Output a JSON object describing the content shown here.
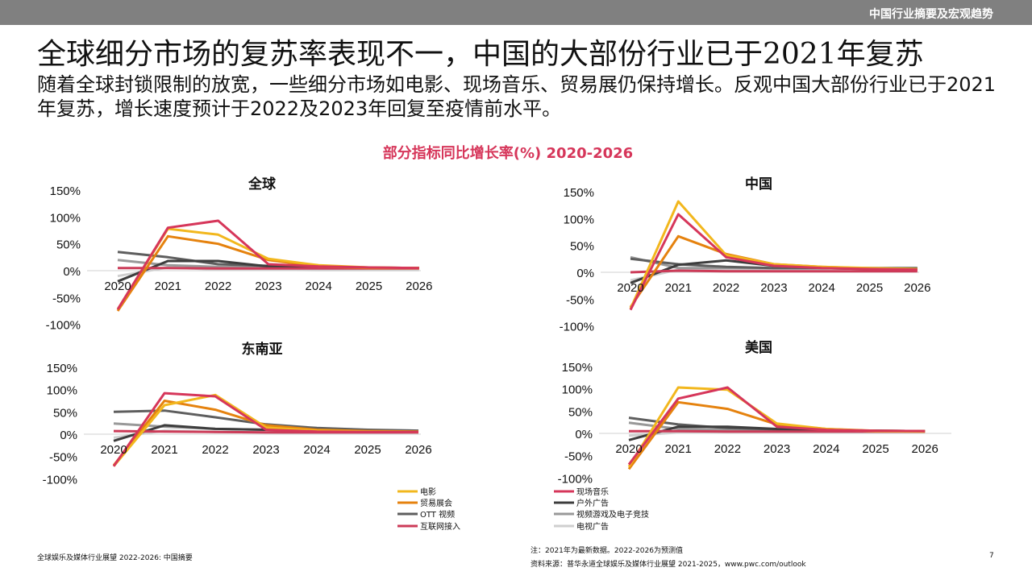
{
  "header": {
    "section_title": "中国行业摘要及宏观趋势"
  },
  "title": "全球细分市场的复苏率表现不一，中国的大部份行业已于2021年复苏",
  "subtitle": "随着全球封锁限制的放宽，一些细分市场如电影、现场音乐、贸易展仍保持增长。反观中国大部份行业已于2021年复苏，增长速度预计于2022及2023年回复至疫情前水平。",
  "chart_title": "部分指标同比增长率(%) 2020-2026",
  "colors": {
    "电影": "#f2b71d",
    "现场音乐": "#d6365a",
    "贸易展会": "#e5820e",
    "户外广告": "#3d3d3d",
    "OTT 视频": "#5e5e5e",
    "视频游戏及电子竞技": "#999999",
    "互联网接入": "#cc3b58",
    "电视广告": "#cfcfcf"
  },
  "chart_data": [
    {
      "type": "line",
      "title": "全球",
      "x": [
        "2020",
        "2021",
        "2022",
        "2023",
        "2024",
        "2025",
        "2026"
      ],
      "yticks": [
        "150%",
        "100%",
        "50%",
        "0%",
        "-50%",
        "-100%"
      ],
      "ylim": [
        -100,
        150
      ],
      "series": [
        {
          "name": "电影",
          "values": [
            -72,
            78,
            67,
            22,
            10,
            6,
            5
          ]
        },
        {
          "name": "现场音乐",
          "values": [
            -72,
            80,
            93,
            12,
            8,
            6,
            5
          ]
        },
        {
          "name": "贸易展会",
          "values": [
            -75,
            64,
            50,
            20,
            8,
            5,
            5
          ]
        },
        {
          "name": "户外广告",
          "values": [
            -20,
            18,
            18,
            8,
            6,
            5,
            5
          ]
        },
        {
          "name": "OTT 视频",
          "values": [
            35,
            25,
            12,
            9,
            7,
            6,
            5
          ]
        },
        {
          "name": "视频游戏及电子竞技",
          "values": [
            20,
            10,
            7,
            6,
            5,
            5,
            5
          ]
        },
        {
          "name": "互联网接入",
          "values": [
            5,
            5,
            4,
            4,
            4,
            4,
            4
          ]
        },
        {
          "name": "电视广告",
          "values": [
            -10,
            6,
            2,
            2,
            1,
            1,
            1
          ]
        }
      ]
    },
    {
      "type": "line",
      "title": "中国",
      "x": [
        "2020",
        "2021",
        "2022",
        "2023",
        "2024",
        "2025",
        "2026"
      ],
      "yticks": [
        "150%",
        "100%",
        "50%",
        "0%",
        "-50%",
        "-100%"
      ],
      "ylim": [
        -100,
        150
      ],
      "series": [
        {
          "name": "电影",
          "values": [
            -68,
            132,
            32,
            15,
            10,
            8,
            6
          ]
        },
        {
          "name": "现场音乐",
          "values": [
            -70,
            108,
            28,
            12,
            8,
            6,
            5
          ]
        },
        {
          "name": "贸易展会",
          "values": [
            -65,
            67,
            34,
            15,
            10,
            7,
            6
          ]
        },
        {
          "name": "户外广告",
          "values": [
            -20,
            14,
            22,
            12,
            8,
            6,
            5
          ]
        },
        {
          "name": "OTT 视频",
          "values": [
            25,
            15,
            10,
            8,
            8,
            8,
            8
          ]
        },
        {
          "name": "视频游戏及电子竞技",
          "values": [
            28,
            8,
            8,
            7,
            7,
            7,
            7
          ]
        },
        {
          "name": "互联网接入",
          "values": [
            0,
            3,
            2,
            2,
            2,
            2,
            2
          ]
        },
        {
          "name": "电视广告",
          "values": [
            -15,
            5,
            3,
            2,
            2,
            2,
            2
          ]
        }
      ]
    },
    {
      "type": "line",
      "title": "东南亚",
      "x": [
        "2020",
        "2021",
        "2022",
        "2023",
        "2024",
        "2025",
        "2026"
      ],
      "yticks": [
        "150%",
        "100%",
        "50%",
        "0%",
        "-50%",
        "-100%"
      ],
      "ylim": [
        -100,
        150
      ],
      "series": [
        {
          "name": "电影",
          "values": [
            -72,
            65,
            88,
            15,
            8,
            6,
            5
          ]
        },
        {
          "name": "现场音乐",
          "values": [
            -72,
            92,
            85,
            10,
            6,
            5,
            5
          ]
        },
        {
          "name": "贸易展会",
          "values": [
            -70,
            75,
            55,
            20,
            10,
            7,
            6
          ]
        },
        {
          "name": "户外广告",
          "values": [
            -15,
            20,
            12,
            10,
            8,
            6,
            5
          ]
        },
        {
          "name": "OTT 视频",
          "values": [
            50,
            53,
            38,
            22,
            14,
            10,
            8
          ]
        },
        {
          "name": "视频游戏及电子竞技",
          "values": [
            24,
            17,
            12,
            10,
            8,
            7,
            6
          ]
        },
        {
          "name": "互联网接入",
          "values": [
            7,
            6,
            5,
            4,
            4,
            4,
            4
          ]
        },
        {
          "name": "电视广告",
          "values": [
            -8,
            8,
            5,
            4,
            3,
            3,
            3
          ]
        }
      ]
    },
    {
      "type": "line",
      "title": "美国",
      "x": [
        "2020",
        "2021",
        "2022",
        "2023",
        "2024",
        "2025",
        "2026"
      ],
      "yticks": [
        "150%",
        "100%",
        "50%",
        "0%",
        "-50%",
        "-100%"
      ],
      "ylim": [
        -100,
        150
      ],
      "series": [
        {
          "name": "电影",
          "values": [
            -75,
            103,
            98,
            22,
            10,
            5,
            4
          ]
        },
        {
          "name": "现场音乐",
          "values": [
            -70,
            78,
            103,
            15,
            8,
            6,
            5
          ]
        },
        {
          "name": "贸易展会",
          "values": [
            -80,
            70,
            55,
            20,
            10,
            6,
            5
          ]
        },
        {
          "name": "户外广告",
          "values": [
            -15,
            15,
            15,
            10,
            8,
            6,
            5
          ]
        },
        {
          "name": "OTT 视频",
          "values": [
            35,
            20,
            12,
            9,
            7,
            6,
            5
          ]
        },
        {
          "name": "视频游戏及电子竞技",
          "values": [
            24,
            10,
            8,
            7,
            6,
            6,
            5
          ]
        },
        {
          "name": "互联网接入",
          "values": [
            5,
            5,
            4,
            4,
            4,
            4,
            4
          ]
        },
        {
          "name": "电视广告",
          "values": [
            -5,
            2,
            2,
            2,
            2,
            2,
            2
          ]
        }
      ]
    }
  ],
  "legend": [
    {
      "label": "电影",
      "series": "电影"
    },
    {
      "label": "现场音乐",
      "series": "现场音乐"
    },
    {
      "label": "贸易展会",
      "series": "贸易展会"
    },
    {
      "label": "户外广告",
      "series": "户外广告"
    },
    {
      "label": "OTT 视频",
      "series": "OTT 视频"
    },
    {
      "label": "视频游戏及电子竞技",
      "series": "视频游戏及电子竞技"
    },
    {
      "label": "互联网接入",
      "series": "互联网接入"
    },
    {
      "label": "电视广告",
      "series": "电视广告"
    }
  ],
  "footer": {
    "left": "全球娱乐及媒体行业展望 2022-2026: 中国摘要",
    "note": "注：2021年为最新数据。2022-2026为预测值",
    "source": "资料来源：普华永道全球娱乐及媒体行业展望 2021-2025，www.pwc.com/outlook",
    "page": "7"
  }
}
